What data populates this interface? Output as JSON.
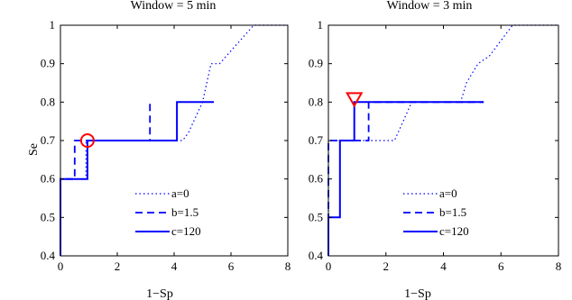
{
  "colors": {
    "series": "#0000ff",
    "marker": "#ff0000",
    "axes": "#000000",
    "background": "#ffffff"
  },
  "chart_data": [
    {
      "type": "line",
      "title": "Window = 5 min",
      "xlabel": "1−Sp",
      "ylabel": "Se",
      "xlim": [
        0,
        8
      ],
      "ylim": [
        0.4,
        1
      ],
      "xticks": [
        "0",
        "2",
        "4",
        "6",
        "8"
      ],
      "yticks": [
        "0.4",
        "0.5",
        "0.6",
        "0.7",
        "0.8",
        "0.9",
        "1"
      ],
      "grid": false,
      "legend_position": "bottom-right",
      "series": [
        {
          "name": "a=0",
          "style": "dotted",
          "points": [
            [
              0,
              0.4
            ],
            [
              0,
              0.6
            ],
            [
              0.9,
              0.6
            ],
            [
              0.9,
              0.7
            ],
            [
              4.3,
              0.7
            ],
            [
              4.5,
              0.72
            ],
            [
              5.0,
              0.8
            ],
            [
              5.3,
              0.9
            ],
            [
              5.6,
              0.9
            ],
            [
              6.8,
              1.0
            ],
            [
              8.0,
              1.0
            ]
          ]
        },
        {
          "name": "b=1.5",
          "style": "dashed",
          "points": [
            [
              0,
              0.4
            ],
            [
              0,
              0.6
            ],
            [
              0.5,
              0.6
            ],
            [
              0.5,
              0.7
            ],
            [
              3.15,
              0.7
            ],
            [
              3.15,
              0.8
            ]
          ]
        },
        {
          "name": "c=120",
          "style": "solid",
          "points": [
            [
              0,
              0.4
            ],
            [
              0,
              0.6
            ],
            [
              0.95,
              0.6
            ],
            [
              0.95,
              0.7
            ],
            [
              4.1,
              0.7
            ],
            [
              4.1,
              0.8
            ],
            [
              5.4,
              0.8
            ]
          ]
        }
      ],
      "marker": {
        "shape": "circle",
        "x": 0.95,
        "y": 0.7
      }
    },
    {
      "type": "line",
      "title": "Window = 3 min",
      "xlabel": "1−Sp",
      "ylabel": "",
      "xlim": [
        0,
        8
      ],
      "ylim": [
        0.4,
        1
      ],
      "xticks": [
        "0",
        "2",
        "4",
        "6",
        "8"
      ],
      "yticks": [
        "0.4",
        "0.5",
        "0.6",
        "0.7",
        "0.8",
        "0.9",
        "1"
      ],
      "grid": false,
      "legend_position": "bottom-right",
      "series": [
        {
          "name": "a=0",
          "style": "dotted",
          "points": [
            [
              0,
              0.4
            ],
            [
              0,
              0.7
            ],
            [
              1.4,
              0.7
            ],
            [
              2.3,
              0.7
            ],
            [
              2.9,
              0.8
            ],
            [
              4.6,
              0.8
            ],
            [
              4.8,
              0.85
            ],
            [
              5.2,
              0.9
            ],
            [
              5.6,
              0.92
            ],
            [
              6.4,
              1.0
            ],
            [
              8.0,
              1.0
            ]
          ]
        },
        {
          "name": "b=1.5",
          "style": "dashed",
          "points": [
            [
              0,
              0.4
            ],
            [
              0,
              0.7
            ],
            [
              1.4,
              0.7
            ],
            [
              1.4,
              0.8
            ],
            [
              5.4,
              0.8
            ]
          ]
        },
        {
          "name": "c=120",
          "style": "solid",
          "points": [
            [
              0,
              0.4
            ],
            [
              0,
              0.5
            ],
            [
              0.4,
              0.5
            ],
            [
              0.4,
              0.7
            ],
            [
              0.9,
              0.7
            ],
            [
              0.9,
              0.8
            ],
            [
              5.4,
              0.8
            ]
          ]
        }
      ],
      "marker": {
        "shape": "triangle-down",
        "x": 0.9,
        "y": 0.8
      }
    }
  ]
}
